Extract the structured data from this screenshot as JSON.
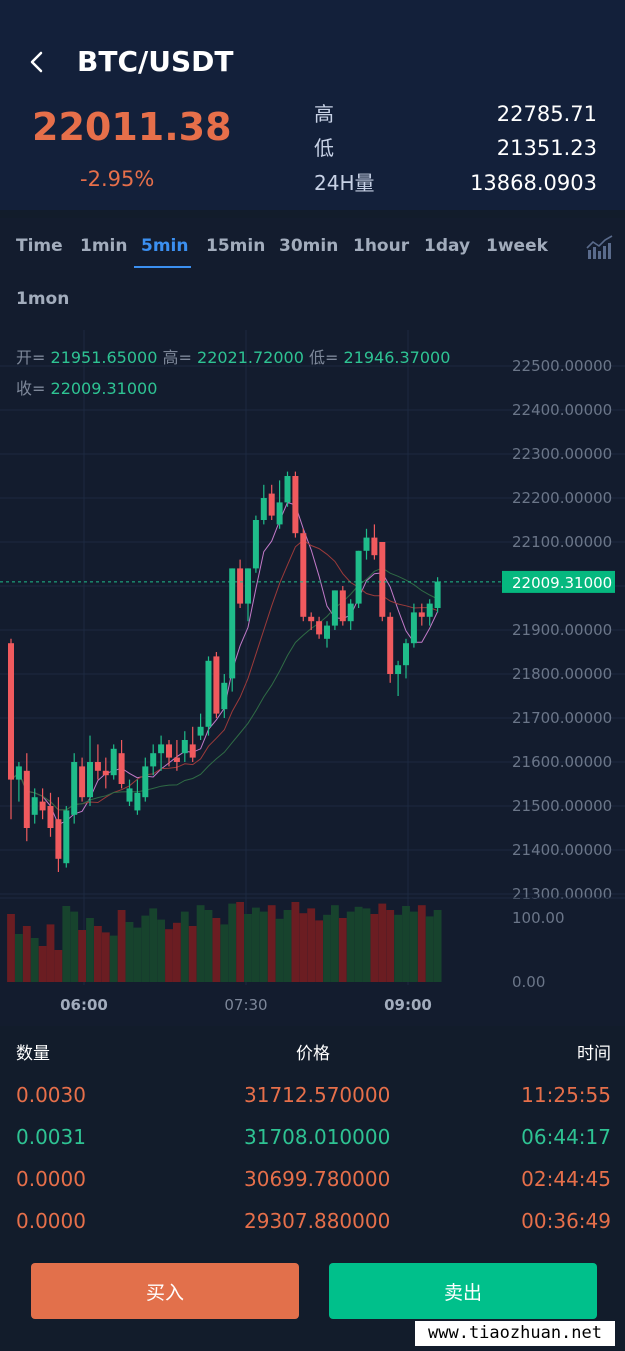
{
  "header": {
    "pair": "BTC/USDT",
    "last_price": "22011.38",
    "change_pct": "-2.95%",
    "stats": [
      {
        "label": "高",
        "value": "22785.71"
      },
      {
        "label": "低",
        "value": "21351.23"
      },
      {
        "label": "24H量",
        "value": "13868.0903"
      }
    ]
  },
  "tabs": {
    "items": [
      "Time",
      "1min",
      "5min",
      "15min",
      "30min",
      "1hour",
      "1day",
      "1week",
      "1mon"
    ],
    "active": "5min"
  },
  "ohlc": {
    "open_label": "开=",
    "open": "21951.65000",
    "high_label": "高=",
    "high": "22021.72000",
    "low_label": "低=",
    "low": "21946.37000",
    "close_label": "收=",
    "close": "22009.31000"
  },
  "chart_data": {
    "type": "candlestick",
    "y_ticks": [
      "22500.00000",
      "22400.00000",
      "22300.00000",
      "22200.00000",
      "22100.00000",
      "22000.00000",
      "21900.00000",
      "21800.00000",
      "21700.00000",
      "21600.00000",
      "21500.00000",
      "21400.00000",
      "21300.00000"
    ],
    "ylim": [
      21300,
      22500
    ],
    "current_price": 22009.31,
    "current_price_label": "22009.31000",
    "x_ticks": [
      "06:00",
      "07:30",
      "09:00"
    ],
    "volume_ticks": [
      "100.00",
      "0.00"
    ],
    "up_color": "#1fbc8a",
    "down_color": "#f05a5e",
    "candles": [
      {
        "o": 21870,
        "h": 21880,
        "l": 21470,
        "c": 21560
      },
      {
        "o": 21560,
        "h": 21600,
        "l": 21510,
        "c": 21590
      },
      {
        "o": 21580,
        "h": 21620,
        "l": 21420,
        "c": 21450
      },
      {
        "o": 21480,
        "h": 21540,
        "l": 21460,
        "c": 21520
      },
      {
        "o": 21510,
        "h": 21540,
        "l": 21470,
        "c": 21490
      },
      {
        "o": 21500,
        "h": 21530,
        "l": 21430,
        "c": 21450
      },
      {
        "o": 21470,
        "h": 21520,
        "l": 21350,
        "c": 21380
      },
      {
        "o": 21370,
        "h": 21500,
        "l": 21360,
        "c": 21490
      },
      {
        "o": 21480,
        "h": 21620,
        "l": 21460,
        "c": 21600
      },
      {
        "o": 21590,
        "h": 21610,
        "l": 21510,
        "c": 21520
      },
      {
        "o": 21520,
        "h": 21660,
        "l": 21500,
        "c": 21600
      },
      {
        "o": 21600,
        "h": 21640,
        "l": 21560,
        "c": 21580
      },
      {
        "o": 21580,
        "h": 21610,
        "l": 21540,
        "c": 21570
      },
      {
        "o": 21570,
        "h": 21640,
        "l": 21560,
        "c": 21630
      },
      {
        "o": 21620,
        "h": 21650,
        "l": 21540,
        "c": 21550
      },
      {
        "o": 21510,
        "h": 21560,
        "l": 21500,
        "c": 21540
      },
      {
        "o": 21490,
        "h": 21560,
        "l": 21480,
        "c": 21530
      },
      {
        "o": 21520,
        "h": 21610,
        "l": 21510,
        "c": 21590
      },
      {
        "o": 21590,
        "h": 21640,
        "l": 21570,
        "c": 21620
      },
      {
        "o": 21620,
        "h": 21660,
        "l": 21580,
        "c": 21640
      },
      {
        "o": 21640,
        "h": 21650,
        "l": 21590,
        "c": 21610
      },
      {
        "o": 21610,
        "h": 21650,
        "l": 21580,
        "c": 21600
      },
      {
        "o": 21620,
        "h": 21670,
        "l": 21600,
        "c": 21650
      },
      {
        "o": 21640,
        "h": 21680,
        "l": 21600,
        "c": 21610
      },
      {
        "o": 21660,
        "h": 21710,
        "l": 21650,
        "c": 21680
      },
      {
        "o": 21680,
        "h": 21840,
        "l": 21660,
        "c": 21830
      },
      {
        "o": 21840,
        "h": 21850,
        "l": 21700,
        "c": 21710
      },
      {
        "o": 21720,
        "h": 21800,
        "l": 21700,
        "c": 21780
      },
      {
        "o": 21790,
        "h": 22040,
        "l": 21760,
        "c": 22040
      },
      {
        "o": 22040,
        "h": 22060,
        "l": 21950,
        "c": 21960
      },
      {
        "o": 21960,
        "h": 22040,
        "l": 21920,
        "c": 22040
      },
      {
        "o": 22040,
        "h": 22160,
        "l": 22030,
        "c": 22150
      },
      {
        "o": 22150,
        "h": 22230,
        "l": 22140,
        "c": 22200
      },
      {
        "o": 22210,
        "h": 22230,
        "l": 22150,
        "c": 22160
      },
      {
        "o": 22140,
        "h": 22240,
        "l": 22130,
        "c": 22190
      },
      {
        "o": 22190,
        "h": 22260,
        "l": 22180,
        "c": 22250
      },
      {
        "o": 22250,
        "h": 22260,
        "l": 22110,
        "c": 22120
      },
      {
        "o": 22120,
        "h": 22130,
        "l": 21920,
        "c": 21930
      },
      {
        "o": 21930,
        "h": 21940,
        "l": 21900,
        "c": 21920
      },
      {
        "o": 21920,
        "h": 21930,
        "l": 21880,
        "c": 21890
      },
      {
        "o": 21880,
        "h": 21920,
        "l": 21860,
        "c": 21910
      },
      {
        "o": 21910,
        "h": 21990,
        "l": 21900,
        "c": 21990
      },
      {
        "o": 21990,
        "h": 22000,
        "l": 21910,
        "c": 21920
      },
      {
        "o": 21920,
        "h": 21970,
        "l": 21900,
        "c": 21960
      },
      {
        "o": 21960,
        "h": 22080,
        "l": 21950,
        "c": 22080
      },
      {
        "o": 22080,
        "h": 22130,
        "l": 22060,
        "c": 22110
      },
      {
        "o": 22110,
        "h": 22140,
        "l": 22060,
        "c": 22070
      },
      {
        "o": 22100,
        "h": 22100,
        "l": 21920,
        "c": 21930
      },
      {
        "o": 21930,
        "h": 21940,
        "l": 21780,
        "c": 21800
      },
      {
        "o": 21800,
        "h": 21830,
        "l": 21750,
        "c": 21820
      },
      {
        "o": 21820,
        "h": 21880,
        "l": 21790,
        "c": 21870
      },
      {
        "o": 21870,
        "h": 21960,
        "l": 21860,
        "c": 21940
      },
      {
        "o": 21940,
        "h": 21960,
        "l": 21910,
        "c": 21930
      },
      {
        "o": 21930,
        "h": 21970,
        "l": 21910,
        "c": 21960
      },
      {
        "o": 21950,
        "h": 22020,
        "l": 21940,
        "c": 22010
      }
    ],
    "volume": [
      85,
      60,
      70,
      55,
      45,
      72,
      40,
      95,
      88,
      65,
      80,
      70,
      62,
      58,
      90,
      75,
      68,
      83,
      92,
      78,
      66,
      74,
      88,
      70,
      96,
      90,
      80,
      72,
      98,
      100,
      85,
      93,
      88,
      96,
      79,
      90,
      100,
      86,
      92,
      77,
      84,
      96,
      80,
      88,
      94,
      92,
      85,
      98,
      90,
      84,
      95,
      88,
      96,
      82,
      90
    ]
  },
  "trades": {
    "headers": {
      "qty": "数量",
      "price": "价格",
      "time": "时间"
    },
    "rows": [
      {
        "qty": "0.0030",
        "price": "31712.570000",
        "time": "11:25:55",
        "color": "#e66f4a"
      },
      {
        "qty": "0.0031",
        "price": "31708.010000",
        "time": "06:44:17",
        "color": "#2ec393"
      },
      {
        "qty": "0.0000",
        "price": "30699.780000",
        "time": "02:44:45",
        "color": "#e66f4a"
      },
      {
        "qty": "0.0000",
        "price": "29307.880000",
        "time": "00:36:49",
        "color": "#e66f4a"
      }
    ]
  },
  "actions": {
    "buy": "买入",
    "sell": "卖出"
  },
  "watermark": "www.tiaozhuan.net"
}
